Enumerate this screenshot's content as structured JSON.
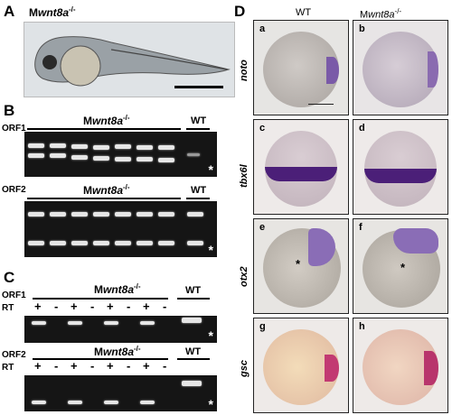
{
  "panels": {
    "A": {
      "letter": "A",
      "title_prefix": "M",
      "title_gene": "wnt8a",
      "title_sup": "-/-"
    },
    "B": {
      "letter": "B",
      "orf1": "ORF1",
      "orf2": "ORF2",
      "mut_prefix": "M",
      "mut_gene": "wnt8a",
      "mut_sup": "-/-",
      "wt": "WT",
      "asterisk": "*"
    },
    "C": {
      "letter": "C",
      "orf1": "ORF1",
      "orf2": "ORF2",
      "rt": "RT",
      "mut_prefix": "M",
      "mut_gene": "wnt8a",
      "mut_sup": "-/-",
      "wt": "WT",
      "plus": "+",
      "minus": "-",
      "asterisk": "*"
    },
    "D": {
      "letter": "D",
      "col_wt": "WT",
      "col_mut_prefix": "M",
      "col_mut_gene": "wnt8a",
      "col_mut_sup": "-/-",
      "rows": [
        {
          "gene": "noto",
          "left": "a",
          "right": "b"
        },
        {
          "gene": "tbx6l",
          "left": "c",
          "right": "d"
        },
        {
          "gene": "otx2",
          "left": "e",
          "right": "f"
        },
        {
          "gene": "gsc",
          "left": "g",
          "right": "h"
        }
      ],
      "asterisk": "*"
    }
  }
}
